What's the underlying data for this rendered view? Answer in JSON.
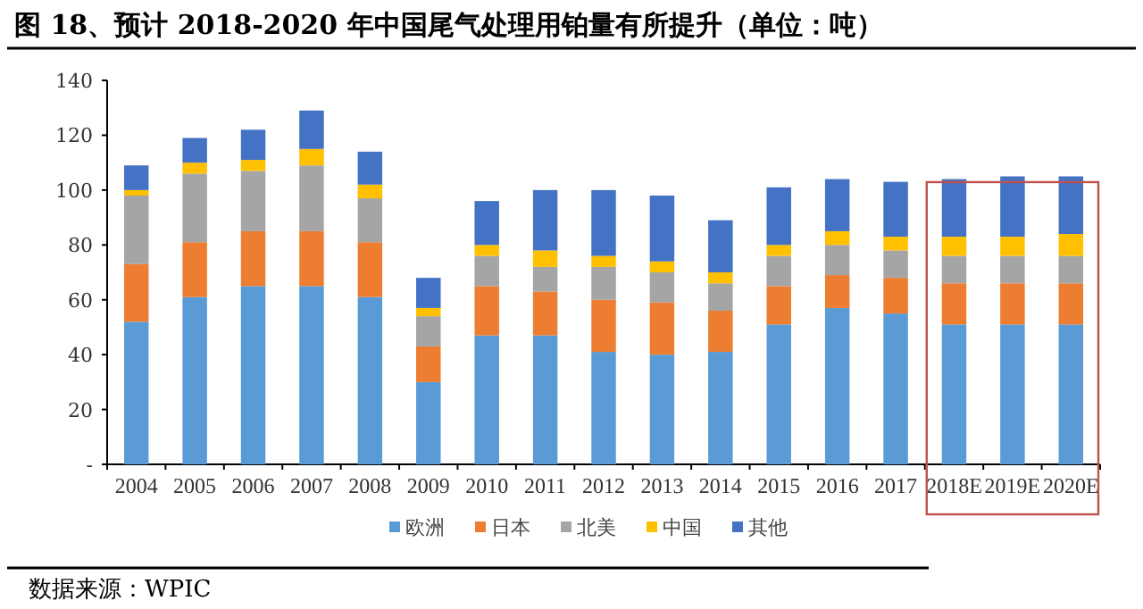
{
  "chart_data": {
    "type": "bar",
    "stacked": true,
    "title": "图 18、预计 2018-2020 年中国尾气处理用铂量有所提升（单位：吨）",
    "categories": [
      "2004",
      "2005",
      "2006",
      "2007",
      "2008",
      "2009",
      "2010",
      "2011",
      "2012",
      "2013",
      "2014",
      "2015",
      "2016",
      "2017",
      "2018E",
      "2019E",
      "2020E"
    ],
    "series": [
      {
        "name": "欧洲",
        "color": "#5b9bd5",
        "values": [
          52,
          61,
          65,
          65,
          61,
          30,
          47,
          47,
          41,
          40,
          41,
          51,
          57,
          55,
          51,
          51,
          51
        ]
      },
      {
        "name": "日本",
        "color": "#ed7d31",
        "values": [
          21,
          20,
          20,
          20,
          20,
          13,
          18,
          16,
          19,
          19,
          15,
          14,
          12,
          13,
          15,
          15,
          15
        ]
      },
      {
        "name": "北美",
        "color": "#a5a5a5",
        "values": [
          25,
          25,
          22,
          24,
          16,
          11,
          11,
          9,
          12,
          11,
          10,
          11,
          11,
          10,
          10,
          10,
          10
        ]
      },
      {
        "name": "中国",
        "color": "#ffc000",
        "values": [
          2,
          4,
          4,
          6,
          5,
          3,
          4,
          6,
          4,
          4,
          4,
          4,
          5,
          5,
          7,
          7,
          8
        ]
      },
      {
        "name": "其他",
        "color": "#4472c4",
        "values": [
          9,
          9,
          11,
          14,
          12,
          11,
          16,
          22,
          24,
          24,
          19,
          21,
          19,
          20,
          21,
          22,
          21
        ]
      }
    ],
    "ylim": [
      0,
      140
    ],
    "yticks": [
      {
        "value": 0,
        "label": "-"
      },
      20,
      40,
      60,
      80,
      100,
      120,
      140
    ],
    "legend": "bottom",
    "annotations": [
      "数据来源：WPIC"
    ]
  }
}
